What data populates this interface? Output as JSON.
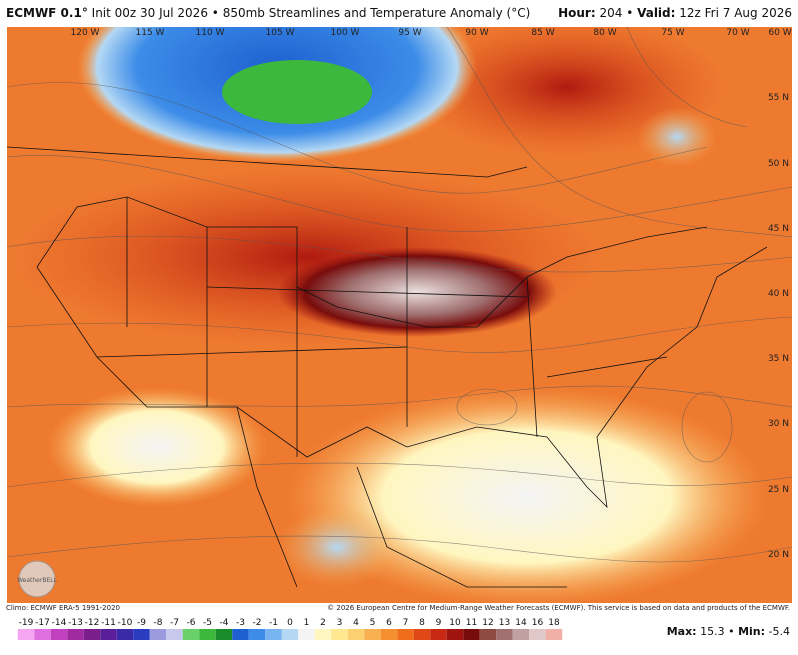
{
  "header": {
    "model": "ECMWF 0.1°",
    "init": "Init 00z 30 Jul 2026",
    "separator": "•",
    "product": "850mb Streamlines and Temperature Anomaly (°C)",
    "hour_label": "Hour:",
    "hour": "204",
    "valid_label": "Valid:",
    "valid": "12z Fri 7 Aug 2026"
  },
  "map": {
    "lon_labels": [
      "120 W",
      "115 W",
      "110 W",
      "105 W",
      "100 W",
      "95 W",
      "90 W",
      "85 W",
      "80 W",
      "75 W",
      "70 W",
      "60 W"
    ],
    "lat_labels": [
      "55 N",
      "50 N",
      "45 N",
      "40 N",
      "35 N",
      "30 N",
      "25 N",
      "20 N"
    ],
    "logo": "WeatherBELL"
  },
  "footer": {
    "climo": "Climo: ECMWF ERA-5 1991-2020",
    "copyright": "© 2026 European Centre for Medium-Range Weather Forecasts (ECMWF). This service is based on data and products of the ECMWF."
  },
  "colorbar": {
    "labels": [
      -19,
      -17,
      -14,
      -13,
      -12,
      -11,
      -10,
      -9,
      -8,
      -7,
      -6,
      -5,
      -4,
      -3,
      -2,
      -1,
      0,
      1,
      2,
      3,
      4,
      5,
      6,
      7,
      8,
      9,
      10,
      11,
      12,
      13,
      14,
      16,
      18
    ],
    "colors": [
      "#f5a6f0",
      "#e070e0",
      "#c040c0",
      "#a02aa0",
      "#7a1e8c",
      "#5a1e9a",
      "#3a2aa8",
      "#2a3cc0",
      "#9a9adc",
      "#c8c8ec",
      "#6ad06a",
      "#3cb83c",
      "#1a8c2a",
      "#1e60d0",
      "#3c8ce8",
      "#78b4f0",
      "#b4d8f4",
      "#f4f4f4",
      "#fff6c0",
      "#ffe890",
      "#fcd070",
      "#f8b050",
      "#f49030",
      "#ee6e1c",
      "#e04818",
      "#c82814",
      "#a01410",
      "#780c0c",
      "#8c4a40",
      "#a07070",
      "#c0a0a0",
      "#e0c8c8",
      "#f0b0a8"
    ]
  },
  "stats": {
    "max_label": "Max:",
    "max": "15.3",
    "separator": "•",
    "min_label": "Min:",
    "min": "-5.4"
  }
}
